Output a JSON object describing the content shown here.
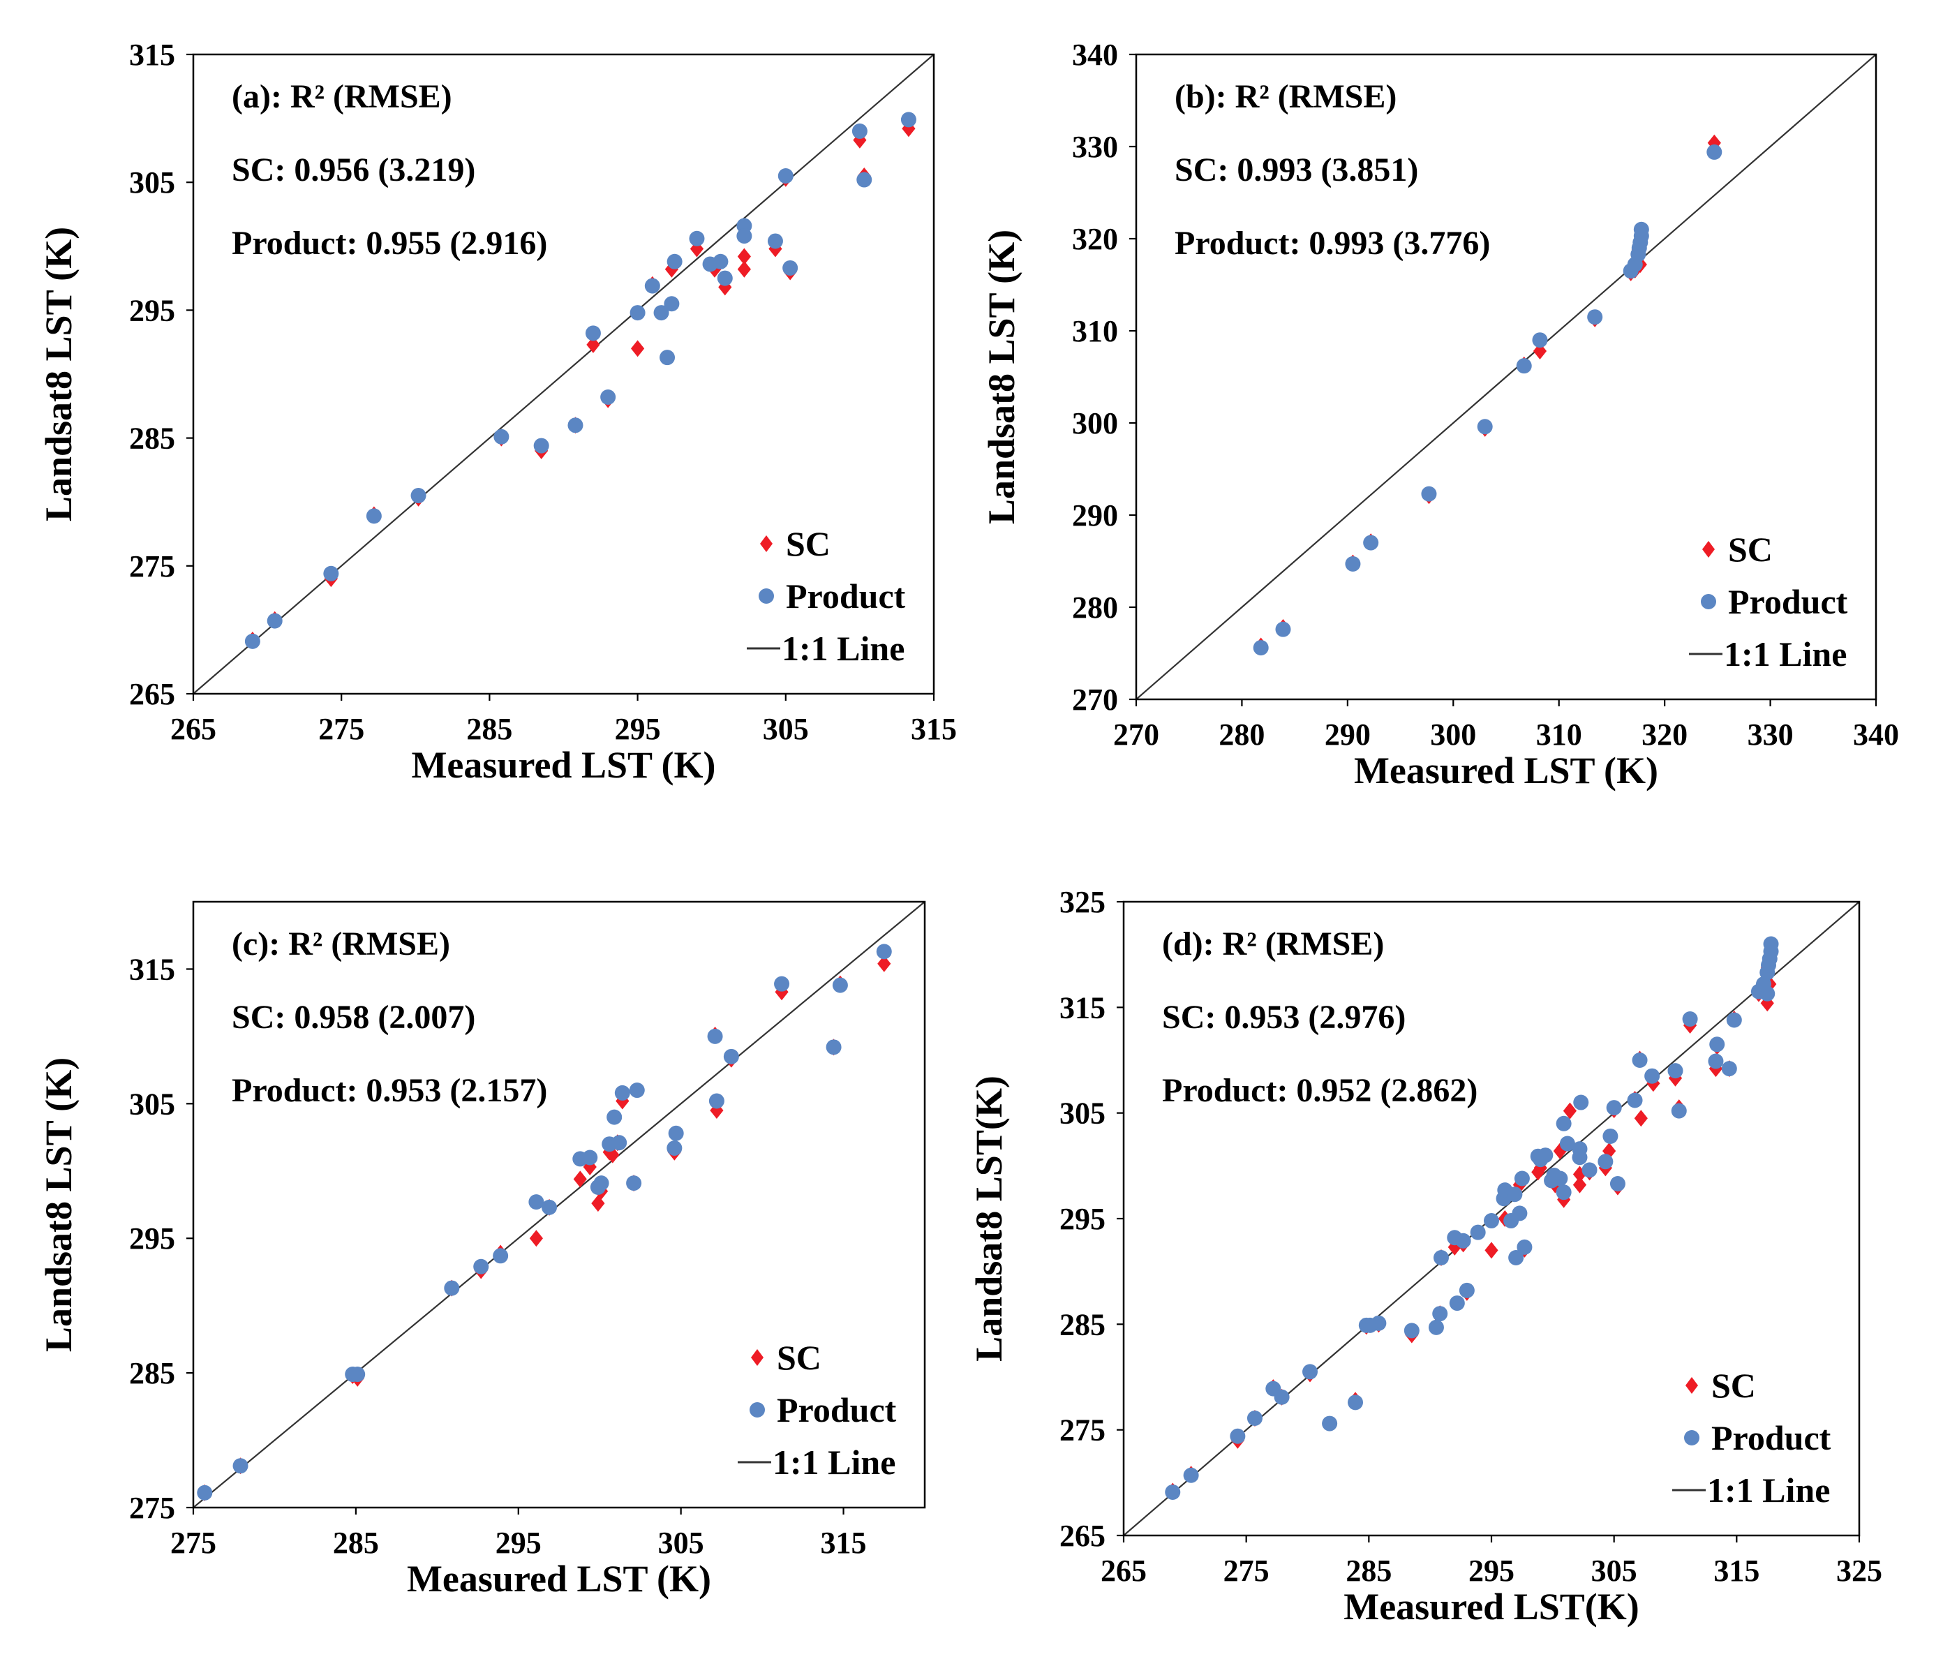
{
  "colors": {
    "sc": "#ee1c25",
    "product": "#5b86c3",
    "line": "#333333"
  },
  "chart_data": [
    {
      "type": "scatter",
      "xlabel": "Measured LST (K)",
      "ylabel": "Landsat8 LST (K)",
      "xlim": [
        265,
        315
      ],
      "ylim": [
        265,
        315
      ],
      "xticks": [
        265,
        275,
        285,
        295,
        305,
        315
      ],
      "yticks": [
        265,
        275,
        285,
        295,
        305,
        315
      ],
      "grid": false,
      "legend_position": "bottom-right",
      "annotations": [
        "(a):  R² (RMSE)",
        "SC: 0.956 (3.219)",
        "Product: 0.955 (2.916)"
      ],
      "legend": [
        "SC",
        "Product",
        "1:1 Line"
      ],
      "series": [
        {
          "name": "SC",
          "marker": "diamond",
          "x": [
            269,
            270.5,
            274.3,
            277.2,
            280.2,
            285.8,
            288.5,
            290.8,
            292,
            293,
            295,
            296,
            297.3,
            299,
            300.2,
            300.9,
            302.2,
            302.2,
            304.3,
            305,
            305.3,
            310,
            310.3,
            313.3
          ],
          "y": [
            269.2,
            270.8,
            274,
            279,
            280.3,
            285,
            284,
            286,
            292.3,
            288,
            292,
            297,
            298.2,
            299.8,
            298.2,
            296.8,
            299.2,
            298.2,
            299.8,
            305.3,
            298,
            308.3,
            305.5,
            309.2
          ]
        },
        {
          "name": "Product",
          "marker": "circle",
          "x": [
            269,
            270.5,
            274.3,
            277.2,
            280.2,
            285.8,
            288.5,
            290.8,
            292,
            293,
            295,
            296,
            296.6,
            297,
            297.3,
            297.5,
            299,
            299.9,
            300.6,
            300.9,
            302.2,
            302.2,
            304.3,
            305,
            305.3,
            310,
            310.3,
            313.3
          ],
          "y": [
            269.1,
            270.7,
            274.4,
            278.9,
            280.5,
            285.1,
            284.4,
            286,
            293.2,
            288.2,
            294.8,
            296.9,
            294.8,
            291.3,
            295.5,
            298.8,
            300.6,
            298.6,
            298.8,
            297.5,
            301.6,
            300.8,
            300.4,
            305.5,
            298.3,
            309,
            305.2,
            309.9
          ]
        }
      ]
    },
    {
      "type": "scatter",
      "xlabel": "Measured LST (K)",
      "ylabel": "Landsat8 LST (K)",
      "xlim": [
        270,
        340
      ],
      "ylim": [
        270,
        340
      ],
      "xticks": [
        270,
        280,
        290,
        300,
        310,
        320,
        330,
        340
      ],
      "yticks": [
        270,
        280,
        290,
        300,
        310,
        320,
        330,
        340
      ],
      "grid": false,
      "legend_position": "bottom-right",
      "annotations": [
        "(b): R²  (RMSE)",
        "SC: 0.993 (3.851)",
        "Product: 0.993 (3.776)"
      ],
      "legend": [
        "SC",
        "Product",
        "1:1 Line"
      ],
      "series": [
        {
          "name": "SC",
          "marker": "diamond",
          "x": [
            281.8,
            283.9,
            290.5,
            292.2,
            297.7,
            303,
            306.7,
            308.2,
            313.4,
            316.8,
            317.2,
            317.5,
            317.7,
            324.7
          ],
          "y": [
            275.8,
            277.8,
            284.8,
            287.1,
            292.1,
            299.4,
            306.3,
            307.8,
            311.3,
            316.3,
            316.6,
            318.8,
            317.2,
            330.4
          ]
        },
        {
          "name": "Product",
          "marker": "circle",
          "x": [
            281.8,
            283.9,
            290.5,
            292.2,
            297.7,
            303,
            306.7,
            308.2,
            313.4,
            316.8,
            317.2,
            317.5,
            317.6,
            317.7,
            317.8,
            317.8,
            324.7
          ],
          "y": [
            275.6,
            277.6,
            284.7,
            287,
            292.3,
            299.6,
            306.2,
            309,
            311.5,
            316.5,
            317.2,
            318.3,
            319,
            319.6,
            320.3,
            321,
            329.4
          ]
        }
      ]
    },
    {
      "type": "scatter",
      "xlabel": "Measured LST (K)",
      "ylabel": "Landsat8 LST (K)",
      "xlim": [
        275,
        320
      ],
      "ylim": [
        275,
        320
      ],
      "xticks": [
        275,
        285,
        295,
        305,
        315
      ],
      "yticks": [
        275,
        285,
        295,
        305,
        315
      ],
      "grid": false,
      "legend_position": "bottom-right",
      "annotations": [
        "(c): R² (RMSE)",
        "SC: 0.958 (2.007)",
        "Product: 0.953 (2.157)"
      ],
      "legend": [
        "SC",
        "Product",
        "1:1 Line"
      ],
      "series": [
        {
          "name": "SC",
          "marker": "diamond",
          "x": [
            275.7,
            277.9,
            284.8,
            285.1,
            290.9,
            292.7,
            293.9,
            296.1,
            296.9,
            298.8,
            299.4,
            299.9,
            300.1,
            300.6,
            300.8,
            301.1,
            301.4,
            302.1,
            304.6,
            307.1,
            307.2,
            308.1,
            311.2,
            314.4,
            314.8,
            317.5
          ],
          "y": [
            276.1,
            278.1,
            284.8,
            284.6,
            291.3,
            292.6,
            293.9,
            295,
            297.3,
            299.4,
            300.3,
            297.6,
            298.5,
            301.4,
            301.2,
            302.1,
            305.2,
            299.1,
            301.4,
            310.1,
            304.5,
            308.3,
            313.3,
            309.2,
            313.9,
            315.4
          ]
        },
        {
          "name": "Product",
          "marker": "circle",
          "x": [
            275.7,
            277.9,
            284.8,
            285.1,
            290.9,
            292.7,
            293.9,
            296.1,
            296.9,
            298.8,
            299.4,
            299.9,
            300.1,
            300.6,
            300.9,
            301.2,
            301.4,
            302.1,
            302.3,
            304.6,
            304.7,
            307.1,
            307.2,
            308.1,
            311.2,
            314.4,
            314.8,
            317.5
          ],
          "y": [
            276.1,
            278.1,
            284.9,
            284.9,
            291.3,
            292.9,
            293.7,
            297.7,
            297.3,
            300.9,
            301,
            298.8,
            299.1,
            302,
            304,
            302.1,
            305.8,
            299.1,
            306,
            301.7,
            302.8,
            310,
            305.2,
            308.5,
            313.9,
            309.2,
            313.8,
            316.3
          ]
        }
      ]
    },
    {
      "type": "scatter",
      "xlabel": "Measured LST(K)",
      "ylabel": "Landsat8 LST(K)",
      "xlim": [
        265,
        325
      ],
      "ylim": [
        265,
        325
      ],
      "xticks": [
        265,
        275,
        285,
        295,
        305,
        315,
        325
      ],
      "yticks": [
        265,
        275,
        285,
        295,
        305,
        315,
        325
      ],
      "grid": false,
      "legend_position": "bottom-right",
      "annotations": [
        "(d): R² (RMSE)",
        "SC: 0.953 (2.976)",
        "Product: 0.952 (2.862)"
      ],
      "legend": [
        "SC",
        "Product",
        "1:1 Line"
      ],
      "series": [
        {
          "name": "SC",
          "marker": "diamond",
          "x": [
            269,
            270.5,
            274.3,
            277.2,
            280.2,
            285.8,
            288.5,
            290.8,
            292,
            293,
            295,
            296,
            297.3,
            299,
            300.2,
            300.9,
            302.2,
            302.2,
            304.3,
            305,
            305.3,
            310,
            310.3,
            313.3,
            275.7,
            277.9,
            284.8,
            290.9,
            292.7,
            296.1,
            298.8,
            300.6,
            301.4,
            304.6,
            307.1,
            307.2,
            308.1,
            311.2,
            314.4,
            314.8,
            317.5,
            283.9,
            290.5,
            297.7,
            303,
            306.7,
            308.2,
            313.4,
            316.8,
            317.2,
            317.5,
            317.7
          ],
          "y": [
            269.2,
            270.8,
            274,
            279,
            280.3,
            285,
            284,
            286,
            292.3,
            288,
            292,
            297,
            298.2,
            299.8,
            298.2,
            296.8,
            299.2,
            298.2,
            299.8,
            305.3,
            298,
            308.3,
            305.5,
            309.2,
            276.1,
            278.1,
            284.8,
            291.3,
            292.6,
            295,
            299.4,
            301.4,
            305.2,
            301.4,
            310.1,
            304.5,
            308.3,
            313.3,
            309.2,
            313.9,
            315.4,
            277.8,
            284.8,
            292.1,
            299.4,
            306.3,
            307.8,
            311.3,
            316.3,
            316.6,
            318.8,
            317.2
          ]
        },
        {
          "name": "Product",
          "marker": "circle",
          "x": [
            269,
            270.5,
            274.3,
            277.2,
            280.2,
            285.8,
            288.5,
            290.8,
            292,
            293,
            295,
            296,
            296.6,
            297,
            297.3,
            297.5,
            299,
            299.9,
            300.6,
            300.9,
            302.2,
            302.2,
            304.3,
            305,
            305.3,
            310,
            310.3,
            313.3,
            275.7,
            277.9,
            284.8,
            285.1,
            290.9,
            292.7,
            293.9,
            296.1,
            296.9,
            298.8,
            299.4,
            300.1,
            300.9,
            301.2,
            302.3,
            304.7,
            307.1,
            308.1,
            311.2,
            314.4,
            314.8,
            317.5,
            281.8,
            283.9,
            290.5,
            292.2,
            297.7,
            303,
            306.7,
            313.4,
            316.8,
            317.2,
            317.5,
            317.6,
            317.7,
            317.8,
            317.8
          ],
          "y": [
            269.1,
            270.7,
            274.4,
            278.9,
            280.5,
            285.1,
            284.4,
            286,
            293.2,
            288.2,
            294.8,
            296.9,
            294.8,
            291.3,
            295.5,
            298.8,
            300.6,
            298.6,
            298.8,
            297.5,
            301.6,
            300.8,
            300.4,
            305.5,
            298.3,
            309,
            305.2,
            309.9,
            276.1,
            278.1,
            284.9,
            284.9,
            291.3,
            292.9,
            293.7,
            297.7,
            297.3,
            300.9,
            301,
            299.1,
            304,
            302.1,
            306,
            302.8,
            310,
            308.5,
            313.9,
            309.2,
            313.8,
            316.3,
            275.6,
            277.6,
            284.7,
            287,
            292.3,
            299.6,
            306.2,
            311.5,
            316.5,
            317.2,
            318.3,
            319,
            319.6,
            320.3,
            321
          ]
        }
      ]
    }
  ]
}
